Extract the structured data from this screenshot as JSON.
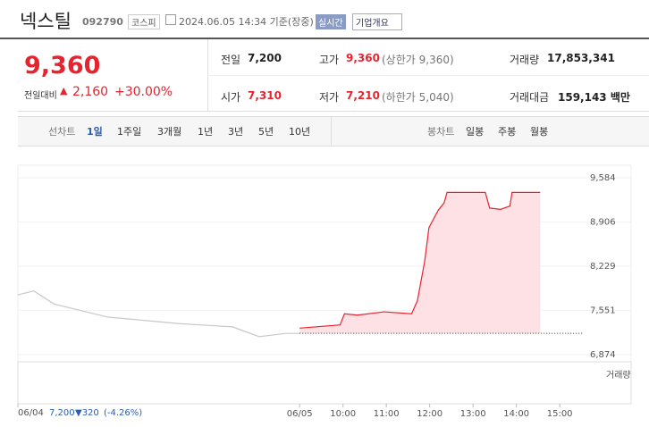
{
  "header": {
    "title": "넥스틸",
    "code": "092790",
    "market": "코스피",
    "time": "2024.06.05 14:34 기준(장중)",
    "realtime": "실시간",
    "overview": "기업개요"
  },
  "quote": {
    "price": "9,360",
    "change_label": "전일대비",
    "change": "2,160",
    "change_rate": "+30.00%"
  },
  "table": {
    "rows": [
      [
        [
          "전일",
          "7,200",
          ""
        ],
        [
          "고가",
          "9,360",
          "(상한가 9,360)"
        ],
        [
          "거래량",
          "17,853,341",
          ""
        ]
      ],
      [
        [
          "시가",
          "7,310",
          ""
        ],
        [
          "저가",
          "7,210",
          "(하한가 5,040)"
        ],
        [
          "거래대금",
          "159,143 백만",
          ""
        ]
      ]
    ]
  },
  "tabs": {
    "line_label": "선차트",
    "line": [
      "1일",
      "1주일",
      "3개월",
      "1년",
      "3년",
      "5년",
      "10년"
    ],
    "candle_label": "봉차트",
    "candle": [
      "일봉",
      "주봉",
      "월봉"
    ]
  },
  "chart_data": {
    "type": "line",
    "volume_label": "거래량",
    "reference_line": 7200,
    "xlim": [
      0,
      782
    ],
    "ylim": [
      6874,
      9584
    ],
    "xticks": [
      {
        "value": 0,
        "label": "06/04"
      },
      {
        "value": 390,
        "label": "06/05"
      },
      {
        "value": 450,
        "label": "10:00"
      },
      {
        "value": 510,
        "label": "11:00"
      },
      {
        "value": 570,
        "label": "12:00"
      },
      {
        "value": 630,
        "label": "13:00"
      },
      {
        "value": 690,
        "label": "14:00"
      },
      {
        "value": 750,
        "label": "15:00"
      }
    ],
    "yticks": [
      {
        "value": 9584,
        "label": "9,584"
      },
      {
        "value": 8906,
        "label": "8,906"
      },
      {
        "value": 8229,
        "label": "8,229"
      },
      {
        "value": 7551,
        "label": "7,551"
      },
      {
        "value": 6874,
        "label": "6,874"
      }
    ],
    "series": [
      {
        "color": "#c8c8c8",
        "x": [
          0,
          22,
          50,
          124,
          223,
          297,
          334,
          371,
          390
        ],
        "values": [
          7790,
          7850,
          7650,
          7450,
          7350,
          7300,
          7150,
          7200,
          7200
        ]
      },
      {
        "color": "#e8232e",
        "fill": "#fde1e4",
        "x": [
          390,
          446,
          452,
          470,
          507,
          545,
          553,
          563,
          569,
          582,
          590,
          594,
          647,
          653,
          668,
          681,
          684,
          723
        ],
        "values": [
          7280,
          7330,
          7500,
          7480,
          7530,
          7500,
          7700,
          8300,
          8820,
          9090,
          9200,
          9360,
          9360,
          9120,
          9100,
          9150,
          9360,
          9360
        ]
      }
    ]
  },
  "footer": {
    "date": "06/04",
    "price": "7,200",
    "change": "▼320",
    "rate": "(-4.26%)"
  }
}
